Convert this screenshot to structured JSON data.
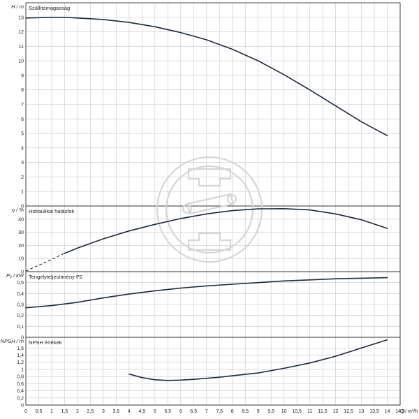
{
  "chart_data": {
    "type": "line",
    "x_axis": {
      "label": "Q / m³/h",
      "ticks": [
        "0",
        "0,5",
        "1",
        "1,5",
        "2",
        "2,5",
        "3",
        "3,5",
        "4",
        "4,5",
        "5",
        "5,5",
        "6",
        "6,5",
        "7",
        "7,5",
        "8",
        "8,5",
        "9",
        "9,5",
        "10",
        "10,5",
        "11",
        "11,5",
        "12",
        "12,5",
        "13",
        "13,5",
        "14",
        "14,5"
      ],
      "range": [
        0,
        14.5
      ]
    },
    "panels": [
      {
        "id": "head",
        "title": "Szállítómagasság",
        "ylabel": "H / m",
        "yticks": [
          "0",
          "1",
          "2",
          "3",
          "4",
          "5",
          "6",
          "7",
          "8",
          "9",
          "10",
          "11",
          "12",
          "13"
        ],
        "ylim": [
          0,
          14
        ],
        "series": [
          {
            "x": [
              0,
              1,
              1.5,
              2,
              3,
              4,
              5,
              6,
              7,
              8,
              9,
              10,
              11,
              12,
              13,
              14
            ],
            "y": [
              12.95,
              13.0,
              13.0,
              12.95,
              12.85,
              12.65,
              12.35,
              11.95,
              11.45,
              10.8,
              10.0,
              9.05,
              8.0,
              6.9,
              5.8,
              4.85
            ]
          }
        ]
      },
      {
        "id": "efficiency",
        "title": "Hidraulikai hatásfok",
        "ylabel": "η / %",
        "yticks": [
          "0",
          "10",
          "20",
          "30",
          "40"
        ],
        "ylim": [
          0,
          50
        ],
        "series": [
          {
            "x": [
              1.5,
              2,
              3,
              4,
              5,
              6,
              7,
              8,
              9,
              10,
              11,
              12,
              13,
              14
            ],
            "y": [
              14,
              18,
              25,
              31,
              36,
              40.5,
              44,
              46.5,
              47.8,
              48,
              47,
              44,
              39.5,
              33
            ]
          }
        ],
        "extrapolated": {
          "x": [
            0,
            0.75,
            1.5
          ],
          "y": [
            0.5,
            7,
            14
          ]
        }
      },
      {
        "id": "power",
        "title": "Tengelyteljesítmény P2",
        "ylabel": "P₂ / kW",
        "yticks": [
          "0",
          "0,1",
          "0,2",
          "0,3",
          "0,4",
          "0,5"
        ],
        "ylim": [
          0,
          0.6
        ],
        "series": [
          {
            "x": [
              0,
              1,
              2,
              3,
              4,
              5,
              6,
              7,
              8,
              9,
              10,
              11,
              12,
              13,
              14
            ],
            "y": [
              0.27,
              0.29,
              0.32,
              0.36,
              0.395,
              0.425,
              0.45,
              0.47,
              0.485,
              0.5,
              0.515,
              0.525,
              0.535,
              0.54,
              0.545
            ]
          }
        ]
      },
      {
        "id": "npsh",
        "title": "NPSH értékek",
        "ylabel": "NPSH / m",
        "yticks": [
          "0",
          "0,2",
          "0,4",
          "0,6",
          "0,8",
          "1",
          "1,2",
          "1,4",
          "1,6"
        ],
        "ylim": [
          0,
          1.9
        ],
        "series": [
          {
            "x": [
              4,
              4.5,
              5,
              5.5,
              6,
              6.5,
              7,
              7.5,
              8,
              8.5,
              9,
              10,
              11,
              12,
              13,
              14
            ],
            "y": [
              0.87,
              0.77,
              0.71,
              0.69,
              0.7,
              0.72,
              0.75,
              0.78,
              0.82,
              0.86,
              0.9,
              1.03,
              1.18,
              1.37,
              1.6,
              1.83
            ]
          }
        ]
      }
    ],
    "grid": true
  }
}
